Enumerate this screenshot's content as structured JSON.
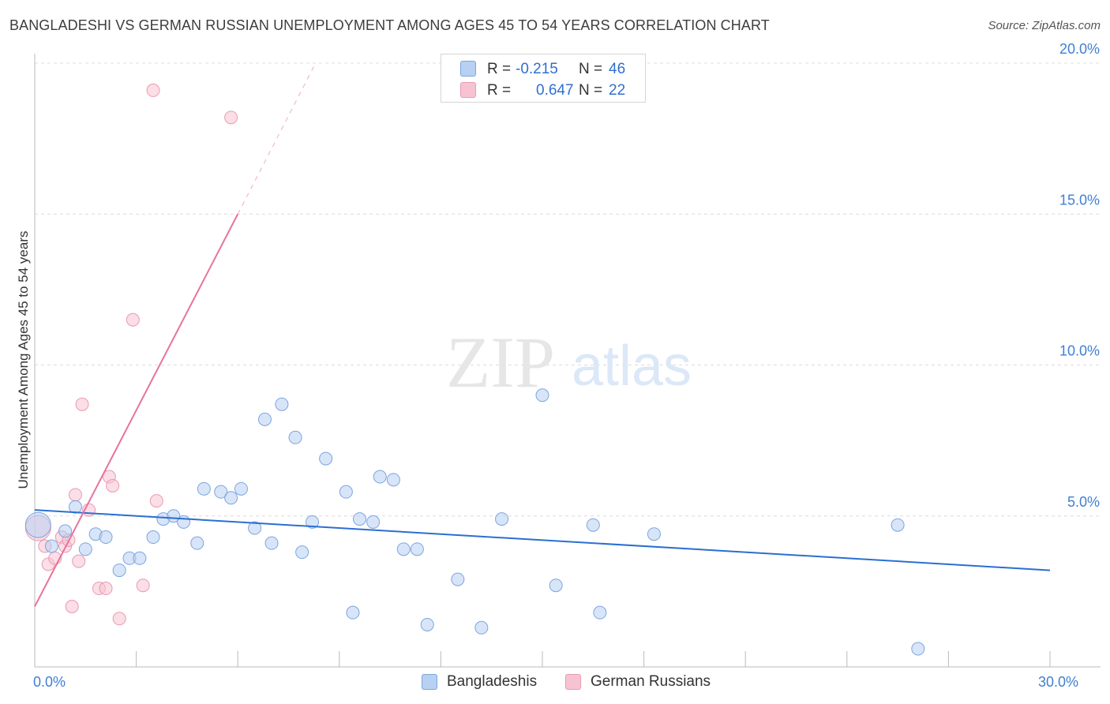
{
  "title": "BANGLADESHI VS GERMAN RUSSIAN UNEMPLOYMENT AMONG AGES 45 TO 54 YEARS CORRELATION CHART",
  "source": "Source: ZipAtlas.com",
  "watermark": {
    "zip": "ZIP",
    "atlas": "atlas"
  },
  "legend": {
    "rows": [
      {
        "r_label": "R =",
        "r_value": "-0.215",
        "n_label": "N =",
        "n_value": "46"
      },
      {
        "r_label": "R =",
        "r_value": "0.647",
        "n_label": "N =",
        "n_value": "22"
      }
    ]
  },
  "bottom_legend": {
    "series1": "Bangladeshis",
    "series2": "German Russians"
  },
  "colors": {
    "blue_fill": "#b8d0f2",
    "blue_stroke": "#7aa5e0",
    "blue_line": "#2a6fd1",
    "pink_fill": "#f7c3d2",
    "pink_stroke": "#e99ab2",
    "pink_line": "#e8739a",
    "axis_text": "#3f7fd4",
    "grid": "#dcdcdc"
  },
  "chart_data": {
    "type": "scatter",
    "title": "BANGLADESHI VS GERMAN RUSSIAN UNEMPLOYMENT AMONG AGES 45 TO 54 YEARS CORRELATION CHART",
    "xlabel": "",
    "ylabel": "Unemployment Among Ages 45 to 54 years",
    "xlim": [
      0,
      30
    ],
    "ylim": [
      0,
      20
    ],
    "x_tick_labels": [
      {
        "value": 0,
        "label": "0.0%"
      },
      {
        "value": 30,
        "label": "30.0%"
      }
    ],
    "y_tick_labels": [
      {
        "value": 5,
        "label": "5.0%"
      },
      {
        "value": 10,
        "label": "10.0%"
      },
      {
        "value": 15,
        "label": "15.0%"
      },
      {
        "value": 20,
        "label": "20.0%"
      }
    ],
    "series": [
      {
        "name": "Bangladeshis",
        "R": -0.215,
        "N": 46,
        "trend": {
          "x": [
            0,
            30
          ],
          "y": [
            5.2,
            3.2
          ]
        },
        "points": [
          {
            "x": 0.1,
            "y": 4.7,
            "big": true
          },
          {
            "x": 0.5,
            "y": 4.0
          },
          {
            "x": 0.9,
            "y": 4.5
          },
          {
            "x": 1.2,
            "y": 5.3
          },
          {
            "x": 1.5,
            "y": 3.9
          },
          {
            "x": 1.8,
            "y": 4.4
          },
          {
            "x": 2.1,
            "y": 4.3
          },
          {
            "x": 2.5,
            "y": 3.2
          },
          {
            "x": 2.8,
            "y": 3.6
          },
          {
            "x": 3.1,
            "y": 3.6
          },
          {
            "x": 3.5,
            "y": 4.3
          },
          {
            "x": 3.8,
            "y": 4.9
          },
          {
            "x": 4.1,
            "y": 5.0
          },
          {
            "x": 4.4,
            "y": 4.8
          },
          {
            "x": 4.8,
            "y": 4.1
          },
          {
            "x": 5.0,
            "y": 5.9
          },
          {
            "x": 5.5,
            "y": 5.8
          },
          {
            "x": 5.8,
            "y": 5.6
          },
          {
            "x": 6.1,
            "y": 5.9
          },
          {
            "x": 6.5,
            "y": 4.6
          },
          {
            "x": 6.8,
            "y": 8.2
          },
          {
            "x": 7.0,
            "y": 4.1
          },
          {
            "x": 7.3,
            "y": 8.7
          },
          {
            "x": 7.7,
            "y": 7.6
          },
          {
            "x": 7.9,
            "y": 3.8
          },
          {
            "x": 8.2,
            "y": 4.8
          },
          {
            "x": 8.6,
            "y": 6.9
          },
          {
            "x": 9.2,
            "y": 5.8
          },
          {
            "x": 9.4,
            "y": 1.8
          },
          {
            "x": 9.6,
            "y": 4.9
          },
          {
            "x": 10.0,
            "y": 4.8
          },
          {
            "x": 10.2,
            "y": 6.3
          },
          {
            "x": 10.6,
            "y": 6.2
          },
          {
            "x": 10.9,
            "y": 3.9
          },
          {
            "x": 11.3,
            "y": 3.9
          },
          {
            "x": 11.6,
            "y": 1.4
          },
          {
            "x": 12.5,
            "y": 2.9
          },
          {
            "x": 13.2,
            "y": 1.3
          },
          {
            "x": 13.8,
            "y": 4.9
          },
          {
            "x": 15.0,
            "y": 9.0
          },
          {
            "x": 15.4,
            "y": 2.7
          },
          {
            "x": 16.5,
            "y": 4.7
          },
          {
            "x": 16.7,
            "y": 1.8
          },
          {
            "x": 18.3,
            "y": 4.4
          },
          {
            "x": 25.5,
            "y": 4.7
          },
          {
            "x": 26.1,
            "y": 0.6
          }
        ]
      },
      {
        "name": "German Russians",
        "R": 0.647,
        "N": 22,
        "trend": {
          "x": [
            0,
            6.0
          ],
          "y": [
            2.0,
            15.0
          ],
          "dashed_to": {
            "x": 8.3,
            "y": 20.0
          }
        },
        "points": [
          {
            "x": 0.1,
            "y": 4.6,
            "big": true
          },
          {
            "x": 0.3,
            "y": 4.0
          },
          {
            "x": 0.4,
            "y": 3.4
          },
          {
            "x": 0.6,
            "y": 3.6
          },
          {
            "x": 0.8,
            "y": 4.3
          },
          {
            "x": 0.9,
            "y": 4.0
          },
          {
            "x": 1.0,
            "y": 4.2
          },
          {
            "x": 1.1,
            "y": 2.0
          },
          {
            "x": 1.2,
            "y": 5.7
          },
          {
            "x": 1.3,
            "y": 3.5
          },
          {
            "x": 1.4,
            "y": 8.7
          },
          {
            "x": 1.6,
            "y": 5.2
          },
          {
            "x": 1.9,
            "y": 2.6
          },
          {
            "x": 2.1,
            "y": 2.6
          },
          {
            "x": 2.2,
            "y": 6.3
          },
          {
            "x": 2.3,
            "y": 6.0
          },
          {
            "x": 2.5,
            "y": 1.6
          },
          {
            "x": 2.9,
            "y": 11.5
          },
          {
            "x": 3.2,
            "y": 2.7
          },
          {
            "x": 3.6,
            "y": 5.5
          },
          {
            "x": 3.5,
            "y": 19.1
          },
          {
            "x": 5.8,
            "y": 18.2
          }
        ]
      }
    ]
  }
}
